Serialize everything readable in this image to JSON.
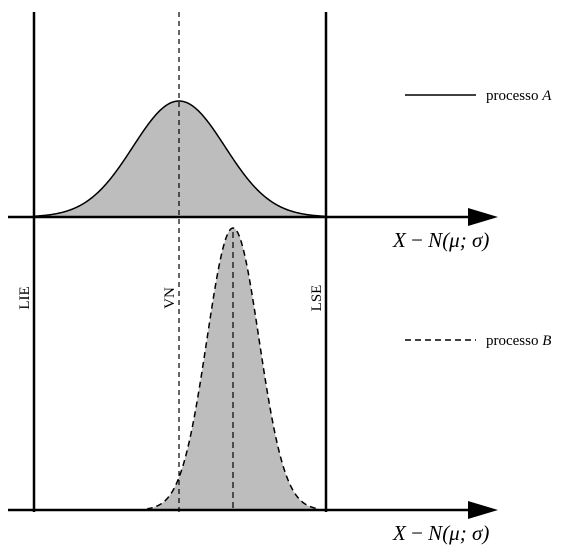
{
  "axes": {
    "upper_label": {
      "prefix": "X",
      "mid": " − ",
      "dist": "N",
      "params": "(μ; σ)"
    },
    "lower_label": {
      "prefix": "X",
      "mid": " − ",
      "dist": "N",
      "params": "(μ; σ)"
    }
  },
  "limits": {
    "lie": "LIE",
    "vn": "VN",
    "lse": "LSE"
  },
  "legend": {
    "process_a": {
      "text": "processo ",
      "letter": "A",
      "line_style": "solid"
    },
    "process_b": {
      "text": "processo ",
      "letter": "B",
      "line_style": "dashed"
    }
  },
  "colors": {
    "curve_fill": "#bdbdbd",
    "stroke": "#000000"
  }
}
